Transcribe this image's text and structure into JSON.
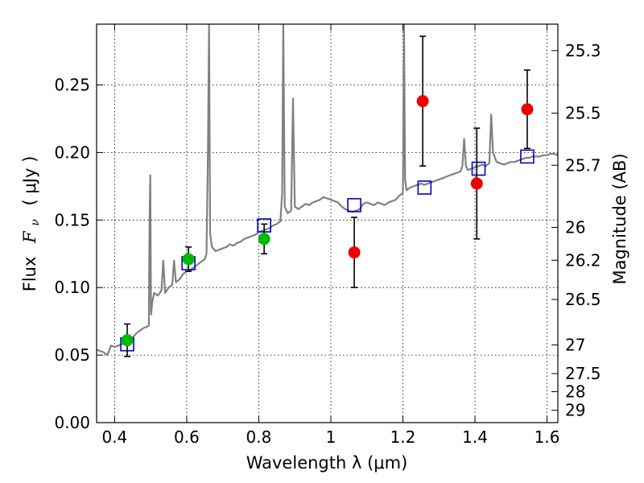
{
  "chart_data": {
    "type": "scatter",
    "xlabel": "Wavelength  λ (μm)",
    "ylabel_text": "Flux",
    "ylabel_symbol": "F",
    "ylabel_sub": "ν",
    "ylabel_unit": "( μJy )",
    "y2label": "Magnitude (AB)",
    "xlim": [
      0.35,
      1.63
    ],
    "ylim": [
      0.0,
      0.295
    ],
    "grid": true,
    "x_ticks": [
      {
        "v": 0.4,
        "label": "0.4"
      },
      {
        "v": 0.6,
        "label": "0.6"
      },
      {
        "v": 0.8,
        "label": "0.8"
      },
      {
        "v": 1.0,
        "label": "1"
      },
      {
        "v": 1.2,
        "label": "1.2"
      },
      {
        "v": 1.4,
        "label": "1.4"
      },
      {
        "v": 1.6,
        "label": "1.6"
      }
    ],
    "y_ticks": [
      {
        "v": 0.0,
        "label": "0.00"
      },
      {
        "v": 0.05,
        "label": "0.05"
      },
      {
        "v": 0.1,
        "label": "0.10"
      },
      {
        "v": 0.15,
        "label": "0.15"
      },
      {
        "v": 0.2,
        "label": "0.20"
      },
      {
        "v": 0.25,
        "label": "0.25"
      }
    ],
    "y2_ticks": [
      {
        "mag": 25.3,
        "label": "25.3"
      },
      {
        "mag": 25.5,
        "label": "25.5"
      },
      {
        "mag": 25.7,
        "label": "25.7"
      },
      {
        "mag": 26.0,
        "label": "26"
      },
      {
        "mag": 26.2,
        "label": "26.2"
      },
      {
        "mag": 26.5,
        "label": "26.5"
      },
      {
        "mag": 27.0,
        "label": "27"
      },
      {
        "mag": 27.5,
        "label": "27.5"
      },
      {
        "mag": 28.0,
        "label": "28"
      },
      {
        "mag": 29.0,
        "label": "29"
      }
    ],
    "series": [
      {
        "kind": "spectrum",
        "color": "#808080",
        "points": [
          [
            0.35,
            0.054
          ],
          [
            0.36,
            0.053
          ],
          [
            0.37,
            0.052
          ],
          [
            0.38,
            0.05
          ],
          [
            0.39,
            0.057
          ],
          [
            0.4,
            0.056
          ],
          [
            0.41,
            0.057
          ],
          [
            0.42,
            0.058
          ],
          [
            0.43,
            0.059
          ],
          [
            0.44,
            0.061
          ],
          [
            0.45,
            0.063
          ],
          [
            0.46,
            0.066
          ],
          [
            0.47,
            0.068
          ],
          [
            0.48,
            0.07
          ],
          [
            0.49,
            0.071
          ],
          [
            0.495,
            0.072
          ],
          [
            0.497,
            0.15
          ],
          [
            0.499,
            0.183
          ],
          [
            0.501,
            0.08
          ],
          [
            0.505,
            0.09
          ],
          [
            0.51,
            0.096
          ],
          [
            0.52,
            0.094
          ],
          [
            0.53,
            0.098
          ],
          [
            0.535,
            0.12
          ],
          [
            0.54,
            0.096
          ],
          [
            0.55,
            0.1
          ],
          [
            0.56,
            0.102
          ],
          [
            0.565,
            0.12
          ],
          [
            0.57,
            0.104
          ],
          [
            0.58,
            0.106
          ],
          [
            0.59,
            0.11
          ],
          [
            0.6,
            0.112
          ],
          [
            0.61,
            0.113
          ],
          [
            0.62,
            0.115
          ],
          [
            0.63,
            0.117
          ],
          [
            0.64,
            0.119
          ],
          [
            0.65,
            0.121
          ],
          [
            0.655,
            0.125
          ],
          [
            0.659,
            0.2
          ],
          [
            0.662,
            0.295
          ],
          [
            0.665,
            0.14
          ],
          [
            0.67,
            0.13
          ],
          [
            0.68,
            0.127
          ],
          [
            0.69,
            0.128
          ],
          [
            0.7,
            0.129
          ],
          [
            0.71,
            0.13
          ],
          [
            0.72,
            0.132
          ],
          [
            0.73,
            0.131
          ],
          [
            0.74,
            0.133
          ],
          [
            0.75,
            0.134
          ],
          [
            0.76,
            0.136
          ],
          [
            0.77,
            0.137
          ],
          [
            0.78,
            0.138
          ],
          [
            0.79,
            0.139
          ],
          [
            0.8,
            0.141
          ],
          [
            0.81,
            0.142
          ],
          [
            0.82,
            0.143
          ],
          [
            0.83,
            0.144
          ],
          [
            0.84,
            0.146
          ],
          [
            0.85,
            0.147
          ],
          [
            0.86,
            0.149
          ],
          [
            0.865,
            0.17
          ],
          [
            0.868,
            0.295
          ],
          [
            0.872,
            0.16
          ],
          [
            0.88,
            0.155
          ],
          [
            0.89,
            0.157
          ],
          [
            0.895,
            0.24
          ],
          [
            0.9,
            0.16
          ],
          [
            0.91,
            0.158
          ],
          [
            0.92,
            0.16
          ],
          [
            0.93,
            0.162
          ],
          [
            0.94,
            0.161
          ],
          [
            0.95,
            0.163
          ],
          [
            0.96,
            0.164
          ],
          [
            0.97,
            0.165
          ],
          [
            0.98,
            0.167
          ],
          [
            0.99,
            0.166
          ],
          [
            1.0,
            0.165
          ],
          [
            1.01,
            0.164
          ],
          [
            1.02,
            0.163
          ],
          [
            1.03,
            0.16
          ],
          [
            1.04,
            0.158
          ],
          [
            1.05,
            0.157
          ],
          [
            1.06,
            0.156
          ],
          [
            1.07,
            0.157
          ],
          [
            1.08,
            0.158
          ],
          [
            1.09,
            0.162
          ],
          [
            1.1,
            0.163
          ],
          [
            1.11,
            0.162
          ],
          [
            1.12,
            0.161
          ],
          [
            1.13,
            0.163
          ],
          [
            1.14,
            0.162
          ],
          [
            1.15,
            0.161
          ],
          [
            1.16,
            0.163
          ],
          [
            1.17,
            0.164
          ],
          [
            1.18,
            0.165
          ],
          [
            1.19,
            0.168
          ],
          [
            1.2,
            0.17
          ],
          [
            1.203,
            0.295
          ],
          [
            1.206,
            0.18
          ],
          [
            1.21,
            0.172
          ],
          [
            1.22,
            0.174
          ],
          [
            1.23,
            0.175
          ],
          [
            1.24,
            0.176
          ],
          [
            1.25,
            0.177
          ],
          [
            1.26,
            0.176
          ],
          [
            1.27,
            0.177
          ],
          [
            1.28,
            0.178
          ],
          [
            1.29,
            0.179
          ],
          [
            1.3,
            0.18
          ],
          [
            1.31,
            0.181
          ],
          [
            1.32,
            0.182
          ],
          [
            1.33,
            0.183
          ],
          [
            1.34,
            0.184
          ],
          [
            1.35,
            0.185
          ],
          [
            1.36,
            0.186
          ],
          [
            1.365,
            0.19
          ],
          [
            1.37,
            0.21
          ],
          [
            1.375,
            0.19
          ],
          [
            1.38,
            0.187
          ],
          [
            1.39,
            0.188
          ],
          [
            1.4,
            0.189
          ],
          [
            1.41,
            0.19
          ],
          [
            1.42,
            0.191
          ],
          [
            1.43,
            0.19
          ],
          [
            1.44,
            0.192
          ],
          [
            1.445,
            0.228
          ],
          [
            1.45,
            0.2
          ],
          [
            1.46,
            0.193
          ],
          [
            1.47,
            0.192
          ],
          [
            1.48,
            0.191
          ],
          [
            1.49,
            0.192
          ],
          [
            1.5,
            0.193
          ],
          [
            1.51,
            0.193
          ],
          [
            1.52,
            0.194
          ],
          [
            1.53,
            0.195
          ],
          [
            1.54,
            0.196
          ],
          [
            1.55,
            0.196
          ],
          [
            1.56,
            0.197
          ],
          [
            1.57,
            0.197
          ],
          [
            1.58,
            0.197
          ],
          [
            1.59,
            0.198
          ],
          [
            1.6,
            0.198
          ],
          [
            1.61,
            0.199
          ],
          [
            1.62,
            0.199
          ],
          [
            1.63,
            0.198
          ]
        ]
      },
      {
        "kind": "model-squares",
        "color": "#0000cc",
        "x": [
          0.435,
          0.605,
          0.815,
          1.065,
          1.26,
          1.41,
          1.545
        ],
        "y": [
          0.058,
          0.118,
          0.146,
          0.161,
          0.174,
          0.188,
          0.197
        ]
      },
      {
        "kind": "observed",
        "color": "#00bb00",
        "points": [
          {
            "x": 0.435,
            "y": 0.061,
            "yerr": 0.012
          },
          {
            "x": 0.605,
            "y": 0.121,
            "yerr": 0.009
          },
          {
            "x": 0.815,
            "y": 0.136,
            "yerr": 0.011
          }
        ]
      },
      {
        "kind": "observed",
        "color": "#ee0000",
        "points": [
          {
            "x": 1.065,
            "y": 0.126,
            "yerr": 0.026
          },
          {
            "x": 1.255,
            "y": 0.238,
            "yerr": 0.048
          },
          {
            "x": 1.405,
            "y": 0.177,
            "yerr": 0.041
          },
          {
            "x": 1.545,
            "y": 0.232,
            "yerr": 0.029
          }
        ]
      }
    ]
  }
}
